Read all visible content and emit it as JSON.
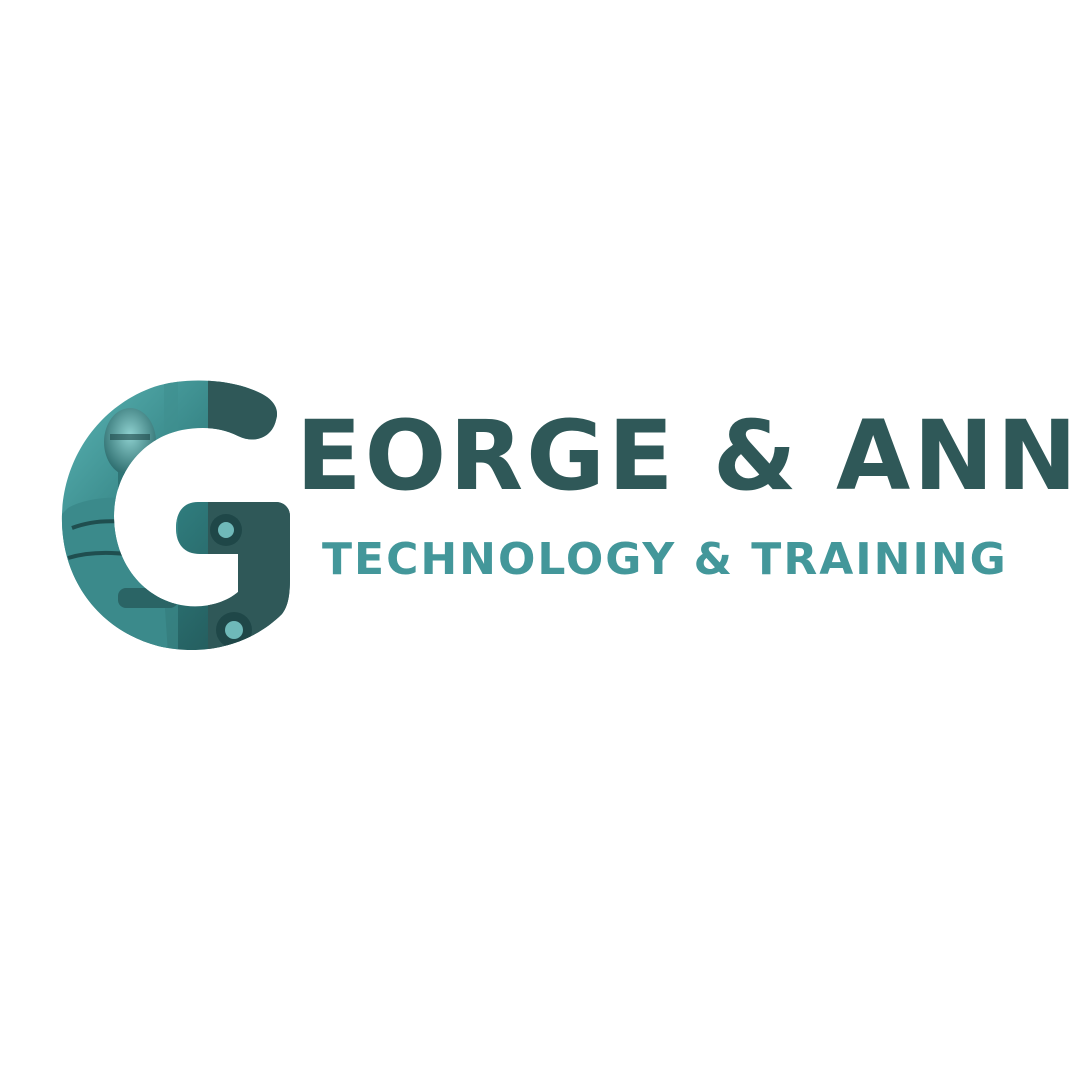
{
  "logo": {
    "name": "EORGE & ANN",
    "initial": "G",
    "tagline": "TECHNOLOGY & TRAINING",
    "mark_icon": "letter-g-robot-photo-icon"
  },
  "colors": {
    "primary": "#2f5858",
    "accent": "#43979a",
    "background": "#ffffff"
  }
}
